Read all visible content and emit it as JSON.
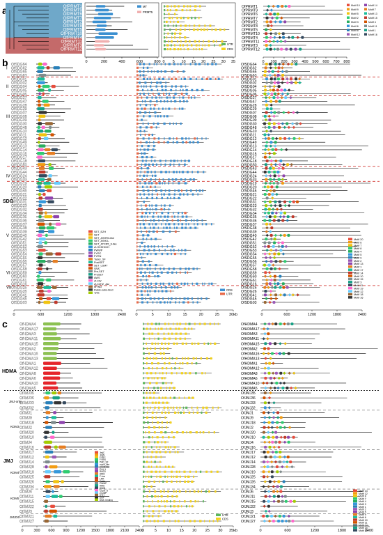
{
  "panel_labels": {
    "a": "a",
    "b": "b",
    "c": "c"
  },
  "group_labels": {
    "sdg": "SDG",
    "hdma": "HDMA",
    "jmj": "JMJ",
    "jmj_only": "JMJ-only",
    "kdm3": "KDM3",
    "kdm4": "KDM4",
    "kdm5": "KDM5",
    "jmjd6": "JMJD6",
    "roman": [
      "I",
      "II",
      "III",
      "IV",
      "V",
      "VI",
      "VII"
    ]
  },
  "units": {
    "kb": "kb"
  },
  "panel_a": {
    "genes": [
      "OfPRMT1",
      "OfPRMT9",
      "OfPRMT6",
      "OfPRMT7",
      "OfPRMT2",
      "OfPRMT8",
      "OfPRMT5",
      "OfPRMT10",
      "OfPRMT4",
      "OfPRMT11",
      "OfPRMT3",
      "OfPRMT12"
    ],
    "axis_domain": [
      "0",
      "200",
      "400",
      "600",
      "800"
    ],
    "axis_gene": [
      "0",
      "5",
      "10",
      "15",
      "20",
      "25",
      "30",
      "35"
    ],
    "axis_motif": [
      "0",
      "100",
      "200",
      "300",
      "400",
      "500",
      "600",
      "700",
      "800"
    ],
    "legend_domain": [
      "MT",
      "PRMT5"
    ],
    "legend_gene": [
      "UTR",
      "CDS"
    ],
    "motifs": [
      "Motif 10",
      "Motif 9",
      "Motif 5",
      "Motif 2",
      "Motif 3",
      "Motif 6",
      "Motif 8",
      "Motif 12",
      "Motif 14",
      "Motif 7",
      "Motif 13",
      "Motif 15",
      "Motif 4",
      "Motif 11",
      "Motif 1",
      "Motif 16"
    ]
  },
  "panel_b": {
    "genes": [
      "OfSDG64",
      "OfSDG62",
      "OfSDG65",
      "OfSDG63",
      "OfSDG01",
      "OfSDG02",
      "OfSDG04",
      "OfSDG05",
      "OfSDG06",
      "OfSDG27",
      "OfSDG47",
      "OfSDG28",
      "OfSDG29",
      "OfSDG07",
      "OfSDG08",
      "OfSDG09",
      "OfSDG30",
      "OfSDG48",
      "OfSDG10",
      "OfSDG11",
      "OfSDG12",
      "OfSDG49",
      "OfSDG13",
      "OfSDG14",
      "OfSDG15",
      "OfSDG17",
      "OfSDG18",
      "OfSDG50",
      "OfSDG43",
      "OfSDG44",
      "OfSDG24",
      "OfSDG33",
      "OfSDG19",
      "OfSDG20",
      "OfSDG46",
      "OfSDG21",
      "OfSDG22",
      "OfSDG31",
      "OfSDG23",
      "OfSDG32",
      "OfSDG34",
      "OfSDG35",
      "OfSDG36",
      "OfSDG37",
      "OfSDG38",
      "OfSDG39",
      "OfSDG40",
      "OfSDG42",
      "OfSDG51",
      "OfSDG52",
      "OfSDG53",
      "OfSDG54",
      "OfSDG55",
      "OfSDG56",
      "OfSDG57",
      "OfSDG58",
      "OfSDG59",
      "OfSDG60",
      "OfSDG61",
      "OfSDG16",
      "OfSDG25",
      "OfSDG26",
      "OfSDG41",
      "OfSDG45",
      "OfSDG03"
    ],
    "axis_domain": [
      "0",
      "600",
      "1200",
      "1800",
      "2400"
    ],
    "axis_gene": [
      "0",
      "5",
      "10",
      "15",
      "20",
      "25",
      "30kb"
    ],
    "axis_motif": [
      "0",
      "600",
      "1200",
      "1800",
      "2400"
    ],
    "domain_legend": [
      "SET_EZH",
      "SET",
      "SET_ASHR3-like",
      "SET_ASH1L",
      "SET_ATXR5_6-like",
      "zf-HC5HC2H",
      "PWWP",
      "FYRC",
      "FYRN",
      "Tudor_SF",
      "PostSET",
      "SET_LSMT",
      "SRA",
      "Pre-SET",
      "PreSET",
      "AWS",
      "zf-CW",
      "zf-C2H2_Jaz",
      "MYND",
      "Rubis-subs-bind",
      "TPR"
    ],
    "gene_legend": [
      "CDS",
      "UTR"
    ],
    "motif_legend": [
      "Motif 20",
      "Motif 6",
      "Motif 7",
      "Motif 8",
      "Motif 4",
      "Motif 5",
      "Motif 9",
      "Motif 2",
      "Motif 13",
      "Motif 1",
      "Motif 17",
      "Motif 14",
      "Motif 10",
      "Motif 15",
      "Motif 3",
      "Motif 11",
      "Motif 19",
      "Motif 12",
      "Motif 18",
      "Motif 16"
    ]
  },
  "panel_c": {
    "genes": [
      "OfHDMA4",
      "OfHDMA17",
      "OfHDMA3",
      "OfHDMA11",
      "OfHDMA15",
      "OfHDMA2",
      "OfHDMA16",
      "OfHDMA13",
      "OfHDMA1",
      "OfHDMA12",
      "OfHDMA8",
      "OfHDMA6",
      "OfHDMA10",
      "OfHDMA5",
      "OfJMJ35",
      "OfJMJ36",
      "OfJMJ33",
      "OfJMJ32",
      "OfJMJ1",
      "OfJMJ9",
      "OfJMJ18",
      "OfJMJ2",
      "OfJMJ20",
      "OfJMJ10",
      "OfJMJ4",
      "OfJMJ16",
      "OfJMJ17",
      "OfJMJ12",
      "OfJMJ14",
      "OfJMJ28",
      "OfJMJ19",
      "OfJMJ25",
      "OfJMJ26",
      "OfJMJ34",
      "OfJMJ6",
      "OfJMJ11",
      "OfJMJ15",
      "OfJMJ22",
      "OfJMJ3",
      "OfJMJ21",
      "OfJMJ27"
    ],
    "axis_domain": [
      "0",
      "300",
      "600",
      "900",
      "1200",
      "1500",
      "1800",
      "2100",
      "2400"
    ],
    "axis_gene": [
      "0",
      "5",
      "10",
      "15",
      "20",
      "25",
      "30",
      "35kb"
    ],
    "axis_motif": [
      "0",
      "600",
      "1200",
      "1800",
      "2400"
    ],
    "domain_legend": [
      "JmjC",
      "JmjN",
      "FYRC",
      "FYRN",
      "PHD_SF",
      "cupin_like",
      "zf-C5HC2",
      "PLU-1",
      "RHD3",
      "ARID",
      "F-box",
      "LRR",
      "Tudor",
      "PWWP",
      "AWS",
      "SWIB",
      "Cupin_8",
      "zf-UBP",
      "HTH",
      "DUF",
      "DNA_binding"
    ],
    "gene_legend": [
      "UTR",
      "CDS"
    ],
    "motif_legend": [
      "Motif 13",
      "Motif 12",
      "Motif 8",
      "Motif 7",
      "Motif 4",
      "Motif 3",
      "Motif 1",
      "Motif 2",
      "Motif 5",
      "Motif 9",
      "Motif 6",
      "Motif 10",
      "Motif 11",
      "Motif 14",
      "Motif 15",
      "Motif 16"
    ]
  },
  "colors": {
    "clade_blue": "#6fa8c9",
    "clade_red": "#c46a6a",
    "mt_blue": "#3a8fd0",
    "prmt5_pink": "#f0b0b0",
    "cds_yellow": "#f3d21c",
    "utr_green": "#5cb85c",
    "gene_blue": "#3c8fd2",
    "hdma_green": "#8cc152",
    "hdma_red": "#e5252b",
    "divider_red": "#d2322d",
    "divider_black": "#000000",
    "motif_palette": [
      "#e74c3c",
      "#f39c12",
      "#f1c40f",
      "#2ecc71",
      "#27ae60",
      "#3498db",
      "#2980b9",
      "#9b59b6",
      "#8e44ad",
      "#e67e22",
      "#1abc9c",
      "#c0392b",
      "#d35400",
      "#7f8c8d",
      "#16a085",
      "#34495e",
      "#ff66cc",
      "#66ccff",
      "#996633",
      "#333333",
      "#a3cc00"
    ]
  }
}
